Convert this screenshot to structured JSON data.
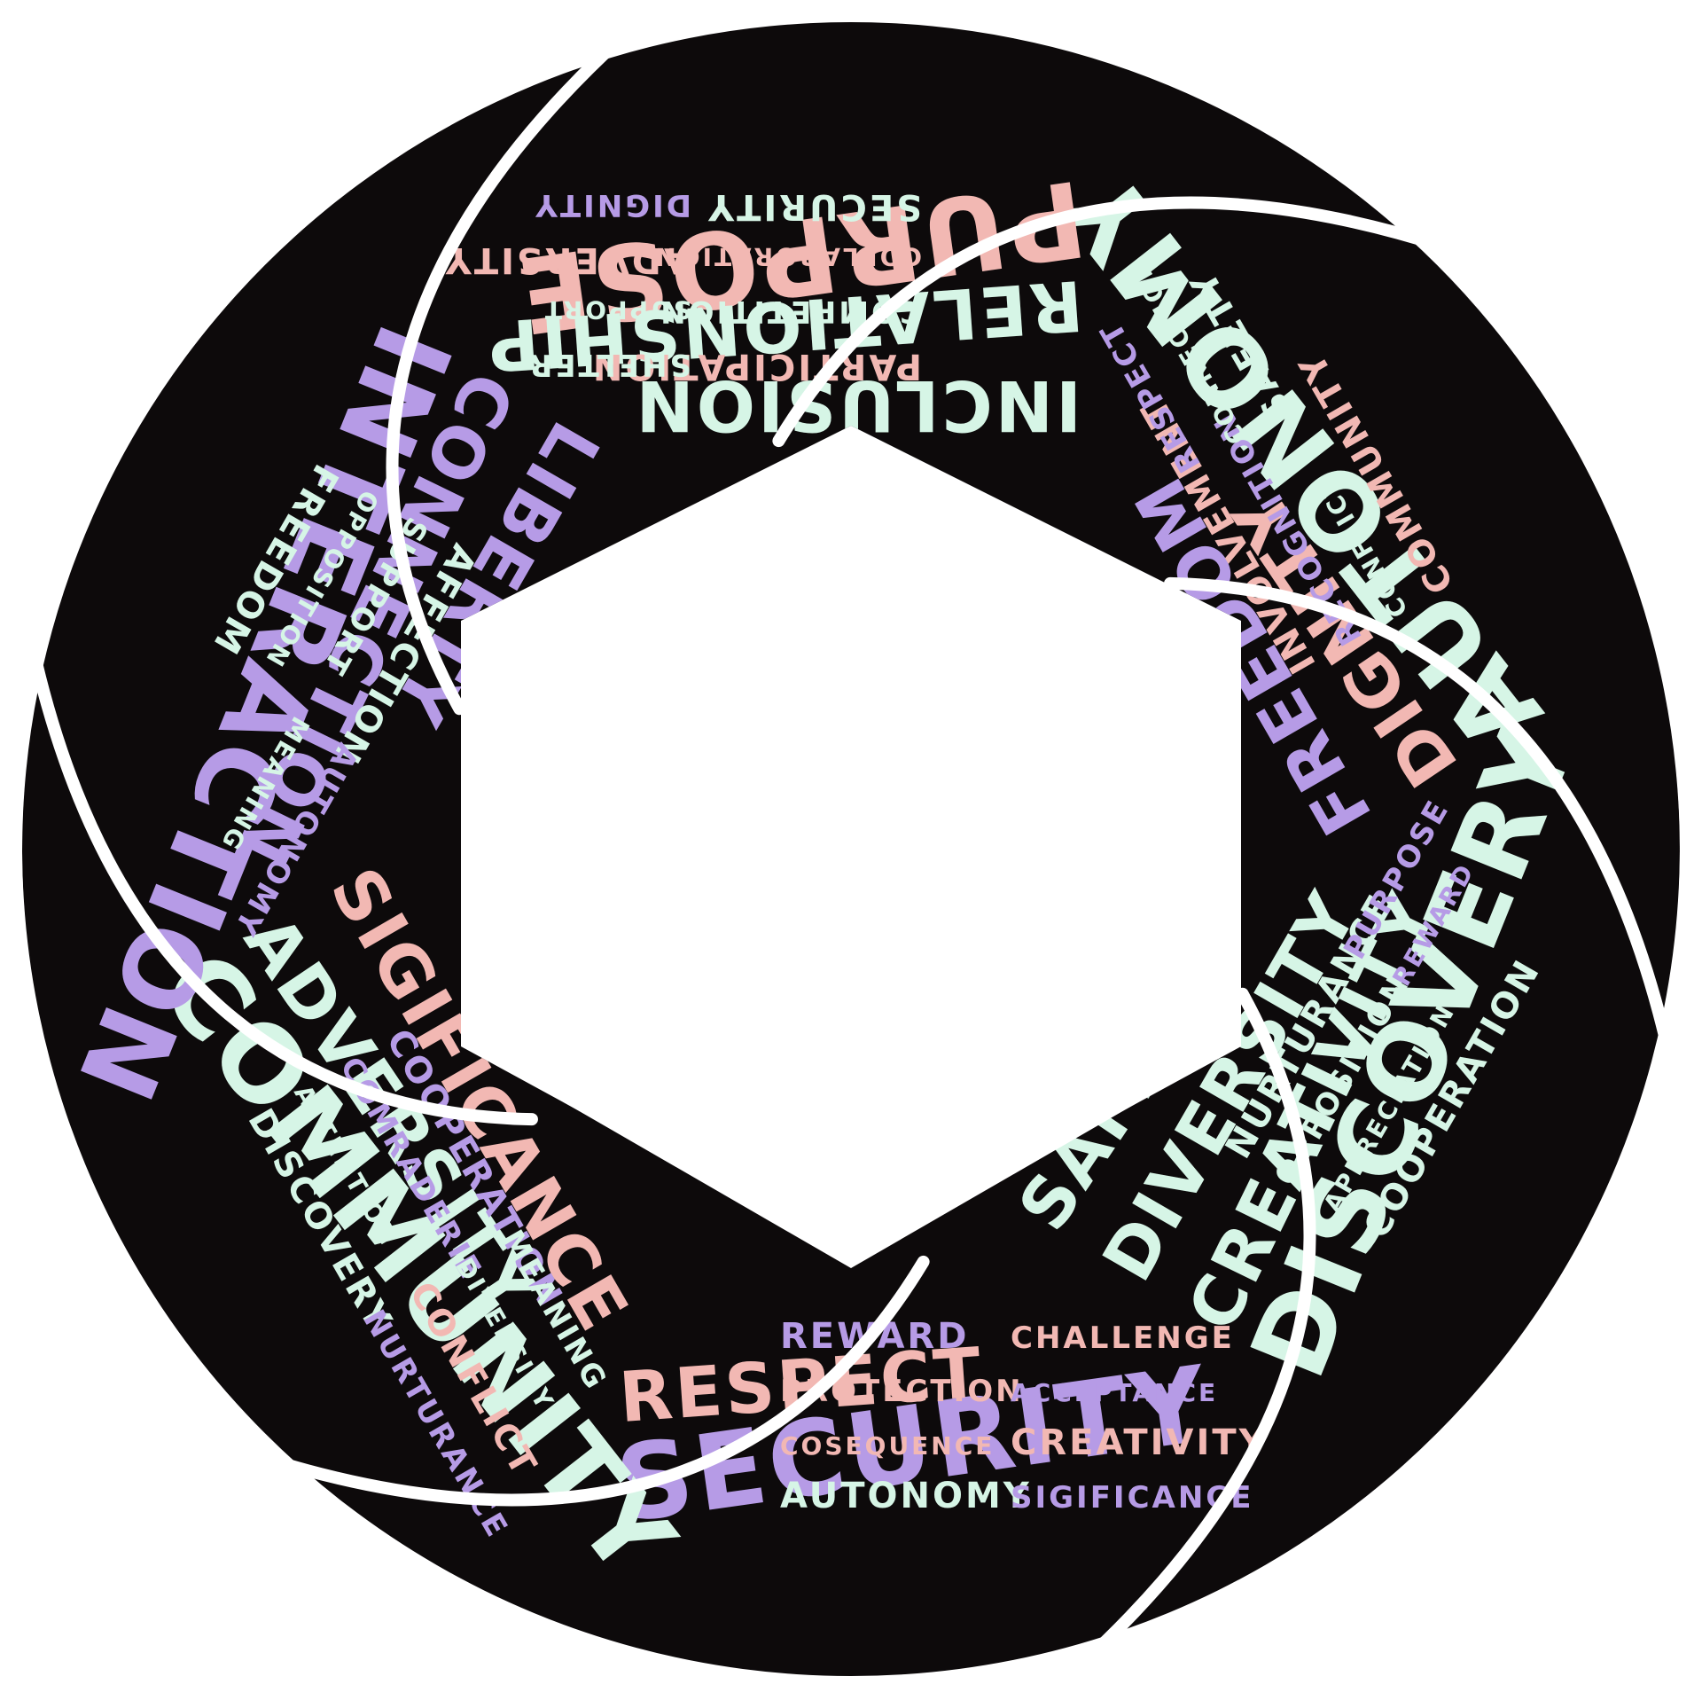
{
  "colors": {
    "background": "#ffffff",
    "blade": "#0d0a0b",
    "gap": "#ffffff",
    "mint": "#d6f5e6",
    "pink": "#f2b8b3",
    "lavender": "#b69be6"
  },
  "blades": [
    {
      "name": "blade-top-left",
      "big": [
        {
          "text": "AUTONOMY",
          "color": "mint"
        },
        {
          "text": "DIGNITY",
          "color": "pink"
        },
        {
          "text": "FREEDOM",
          "color": "lavender"
        }
      ],
      "small": [
        {
          "text": "INVOLVEMENT",
          "color": "pink"
        },
        {
          "text": "RECOGNITION",
          "color": "lavender"
        },
        {
          "text": "CONFLICT",
          "color": "mint"
        },
        {
          "text": "COMMUNITY",
          "color": "pink"
        },
        {
          "text": "RESPECT",
          "color": "lavender"
        },
        {
          "text": "CONNECTION",
          "color": "mint"
        },
        {
          "text": "SAFETY",
          "color": "mint"
        }
      ]
    },
    {
      "name": "blade-top-right",
      "big": [
        {
          "text": "DISCOVERY",
          "color": "mint"
        },
        {
          "text": "CREATIVITY",
          "color": "mint"
        },
        {
          "text": "DIVERSITY",
          "color": "mint"
        },
        {
          "text": "SAFETY",
          "color": "mint"
        }
      ],
      "small": [
        {
          "text": "NURTURANCE",
          "color": "mint"
        },
        {
          "text": "OPPOSITION",
          "color": "mint"
        },
        {
          "text": "APPRECIATION",
          "color": "mint"
        },
        {
          "text": "COOPERATION",
          "color": "mint"
        },
        {
          "text": "PURPOSE",
          "color": "lavender"
        },
        {
          "text": "REWARD",
          "color": "lavender"
        }
      ]
    },
    {
      "name": "blade-right",
      "big": [
        {
          "text": "SECURITY",
          "color": "lavender"
        },
        {
          "text": "RESPECT",
          "color": "pink"
        }
      ],
      "small": [
        {
          "text": "REWARD",
          "color": "lavender"
        },
        {
          "text": "PROTECTION",
          "color": "pink"
        },
        {
          "text": "COSEQUENCE",
          "color": "pink"
        },
        {
          "text": "AUTONOMY",
          "color": "mint"
        },
        {
          "text": "CHALLENGE",
          "color": "pink"
        },
        {
          "text": "ACCEPTANCE",
          "color": "lavender"
        },
        {
          "text": "CREATIVITY",
          "color": "pink"
        },
        {
          "text": "SIGIFICANCE",
          "color": "lavender"
        }
      ]
    },
    {
      "name": "blade-bottom",
      "big": [
        {
          "text": "COMMUNITY",
          "color": "mint"
        },
        {
          "text": "ADVERSITY",
          "color": "mint"
        },
        {
          "text": "SIGIFICANCE",
          "color": "pink"
        }
      ],
      "small": [
        {
          "text": "COOPERATION",
          "color": "lavender"
        },
        {
          "text": "COMRADERIE",
          "color": "lavender"
        },
        {
          "text": "ATTENTION",
          "color": "mint"
        },
        {
          "text": "DISCOVERY",
          "color": "mint"
        },
        {
          "text": "MEANING",
          "color": "mint"
        },
        {
          "text": "DIVERSITY",
          "color": "mint"
        },
        {
          "text": "CONFLICT",
          "color": "pink"
        },
        {
          "text": "NURTURANCE",
          "color": "lavender"
        }
      ]
    },
    {
      "name": "blade-bottom-left",
      "big": [
        {
          "text": "INTERACTION",
          "color": "lavender"
        },
        {
          "text": "CONNECTION",
          "color": "lavender"
        },
        {
          "text": "LIBERTY",
          "color": "lavender"
        }
      ],
      "small": [
        {
          "text": "AFFECTION",
          "color": "mint"
        },
        {
          "text": "SUPPORT",
          "color": "mint"
        },
        {
          "text": "OPPOSITION",
          "color": "mint"
        },
        {
          "text": "FREEDOM",
          "color": "mint"
        },
        {
          "text": "AUTONOMY",
          "color": "lavender"
        },
        {
          "text": "MEANING",
          "color": "mint"
        }
      ]
    },
    {
      "name": "blade-left",
      "big": [
        {
          "text": "PURPOSE",
          "color": "pink"
        },
        {
          "text": "RELATIONSHIP",
          "color": "mint"
        },
        {
          "text": "INCLUSION",
          "color": "mint"
        }
      ],
      "small": [
        {
          "text": "PARTICIPATION",
          "color": "pink"
        },
        {
          "text": "COMPETITION",
          "color": "mint"
        },
        {
          "text": "COLLABORATION",
          "color": "pink"
        },
        {
          "text": "SECURITY",
          "color": "mint"
        },
        {
          "text": "SHELTER",
          "color": "mint"
        },
        {
          "text": "SUPPORT",
          "color": "mint"
        },
        {
          "text": "ADVERSITY",
          "color": "pink"
        },
        {
          "text": "DIGNITY",
          "color": "lavender"
        }
      ]
    }
  ]
}
